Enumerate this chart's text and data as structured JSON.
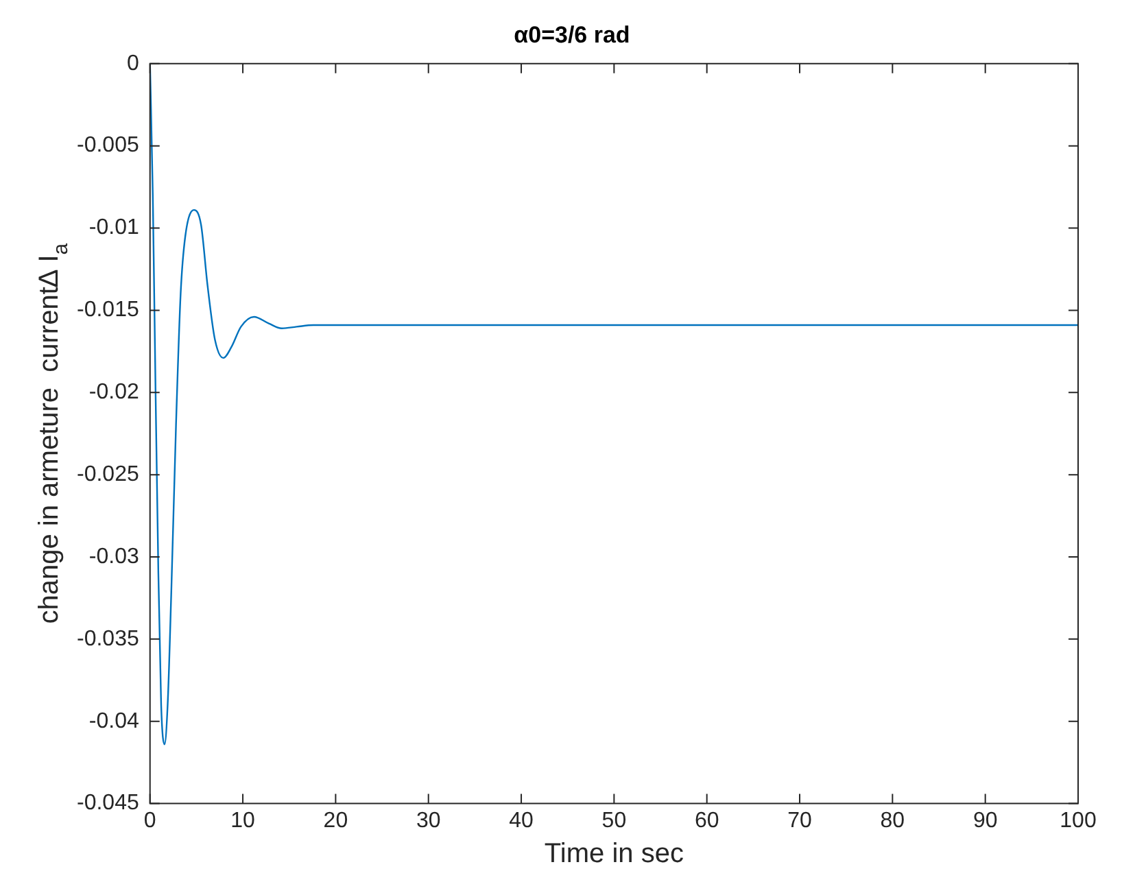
{
  "chart_data": {
    "type": "line",
    "title": "α0=3/6 rad",
    "xlabel": "Time in sec",
    "ylabel": "change in armeture  current∆ I$_{a}$",
    "x": [
      0,
      0.3,
      0.6,
      0.9,
      1.2,
      1.56,
      1.9,
      2.3,
      2.8,
      3.3,
      3.8,
      4.74,
      5.5,
      6.2,
      7.0,
      7.9,
      8.8,
      9.8,
      11.2,
      12.8,
      14.2,
      15.8,
      17.6,
      20,
      30,
      100
    ],
    "series": [
      {
        "color": "#0072bd",
        "values": [
          0,
          -0.008,
          -0.02,
          -0.031,
          -0.039,
          -0.0414,
          -0.039,
          -0.032,
          -0.022,
          -0.014,
          -0.0105,
          -0.0089,
          -0.0098,
          -0.0135,
          -0.0168,
          -0.0179,
          -0.0172,
          -0.016,
          -0.0154,
          -0.0158,
          -0.0161,
          -0.016,
          -0.0159,
          -0.0159,
          -0.0159,
          -0.0159
        ]
      }
    ],
    "xlim": [
      0,
      100
    ],
    "xticks": [
      0,
      10,
      20,
      30,
      40,
      50,
      60,
      70,
      80,
      90,
      100
    ],
    "ylim": [
      -0.045,
      0
    ],
    "yticks": [
      -0.045,
      -0.04,
      -0.035,
      -0.03,
      -0.025,
      -0.02,
      -0.015,
      -0.01,
      -0.005,
      0
    ],
    "legend": false,
    "grid": false,
    "marker": "none",
    "line_style": "solid"
  }
}
